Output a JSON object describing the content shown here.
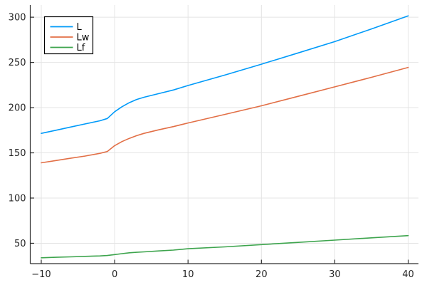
{
  "chart_data": {
    "type": "line",
    "title": "",
    "xlabel": "",
    "ylabel": "",
    "grid": true,
    "background": "#ffffff",
    "xlim": [
      -11.5,
      41.4
    ],
    "ylim": [
      27.5,
      313.5
    ],
    "xticks": {
      "values": [
        -10,
        0,
        10,
        20,
        30,
        40
      ],
      "labels": [
        "−10",
        "0",
        "10",
        "20",
        "30",
        "40"
      ]
    },
    "yticks": {
      "values": [
        50,
        100,
        150,
        200,
        250,
        300
      ],
      "labels": [
        "50",
        "100",
        "150",
        "200",
        "250",
        "300"
      ]
    },
    "x": [
      -10,
      -8,
      -6,
      -4,
      -2,
      -1,
      0,
      1,
      2,
      3,
      4,
      6,
      8,
      10,
      15,
      20,
      25,
      30,
      35,
      40
    ],
    "series": [
      {
        "name": "L",
        "color": "#009af9",
        "values": [
          171.5,
          175,
          178.5,
          182,
          185.5,
          188,
          195.5,
          201,
          205.5,
          209,
          211.5,
          215.5,
          219.5,
          224.5,
          236,
          248,
          260.5,
          273,
          287,
          301.5
        ]
      },
      {
        "name": "Lw",
        "color": "#e26f46",
        "values": [
          139,
          141.5,
          144,
          146.5,
          149.5,
          151.5,
          158,
          162.5,
          166,
          169,
          171.5,
          175.5,
          179,
          183,
          192.5,
          202,
          212.5,
          223,
          233.5,
          244.5
        ]
      },
      {
        "name": "Lf",
        "color": "#3da44d",
        "values": [
          34,
          34.5,
          35,
          35.5,
          36,
          36.5,
          37.5,
          38.5,
          39.5,
          40,
          40.5,
          41.5,
          42.5,
          44,
          46,
          48.5,
          51,
          53.5,
          56,
          58.5
        ]
      }
    ],
    "legend": {
      "position": "top-left",
      "entries": [
        "L",
        "Lw",
        "Lf"
      ],
      "border_color": "#000000",
      "fill_color": "#ffffff"
    }
  },
  "style_colors": {
    "grid_color": "#e4e4e4",
    "spine_color": "#2e2e2e",
    "tick_color": "#2e2e2e",
    "tick_label_color": "#262626",
    "legend_text_color": "#000000"
  }
}
